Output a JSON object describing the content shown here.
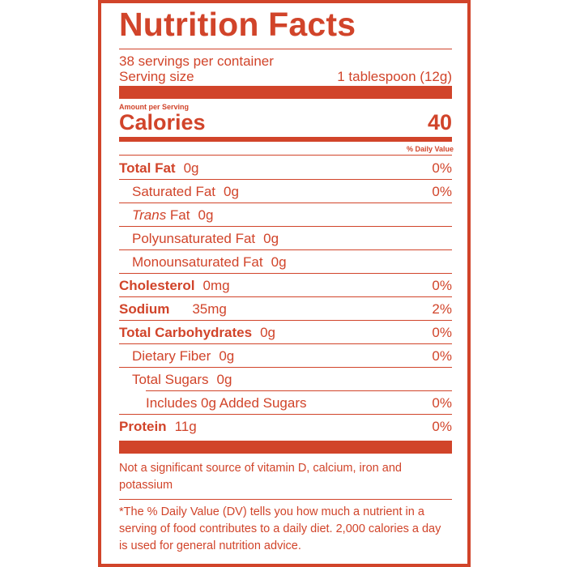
{
  "title": "Nutrition Facts",
  "servings_per_container": "38 servings per container",
  "serving_size_label": "Serving size",
  "serving_size_value": "1 tablespoon (12g)",
  "amount_per_serving": "Amount per Serving",
  "calories_label": "Calories",
  "calories_value": "40",
  "daily_value_header": "% Daily Value",
  "nutrients": [
    {
      "name": "Total Fat",
      "amount": "0g",
      "dv": "0%"
    },
    {
      "name": "Saturated Fat",
      "amount": "0g",
      "dv": "0%"
    },
    {
      "name_italic": "Trans",
      "name_rest": " Fat",
      "amount": "0g"
    },
    {
      "name": "Polyunsaturated Fat",
      "amount": "0g"
    },
    {
      "name": "Monounsaturated Fat",
      "amount": "0g"
    },
    {
      "name": "Cholesterol",
      "amount": "0mg",
      "dv": "0%"
    },
    {
      "name": "Sodium",
      "amount": "35mg",
      "dv": "2%"
    },
    {
      "name": "Total Carbohydrates",
      "amount": "0g",
      "dv": "0%"
    },
    {
      "name": "Dietary Fiber",
      "amount": "0g",
      "dv": "0%"
    },
    {
      "name": "Total Sugars",
      "amount": "0g"
    },
    {
      "text": "Includes 0g Added Sugars",
      "dv": "0%"
    },
    {
      "name": "Protein",
      "amount": "11g",
      "dv": "0%"
    }
  ],
  "vitamin_note": "Not a significant source of vitamin D, calcium, iron and potassium",
  "footnote": "*The % Daily Value (DV) tells you how much a nutrient in a serving of food contributes to a daily diet.  2,000 calories a day is used for general nutrition advice.",
  "colors": {
    "label_red": "#d1442a",
    "background": "#ffffff"
  }
}
